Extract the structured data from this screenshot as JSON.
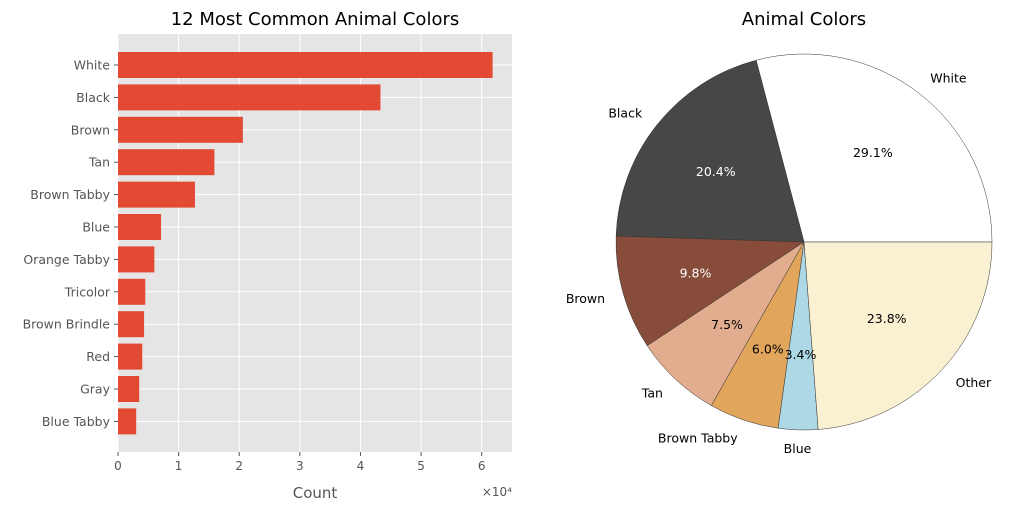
{
  "chart_data": [
    {
      "type": "bar",
      "orientation": "horizontal",
      "title": "12 Most  Common Animal Colors",
      "xlabel": "Count",
      "ylabel": "",
      "x_scale_label": "×10⁴",
      "xlim": [
        0,
        6.5
      ],
      "xticks": [
        "0",
        "1",
        "2",
        "3",
        "4",
        "5",
        "6"
      ],
      "grid": true,
      "categories": [
        "White",
        "Black",
        "Brown",
        "Tan",
        "Brown Tabby",
        "Blue",
        "Orange Tabby",
        "Tricolor",
        "Brown Brindle",
        "Red",
        "Gray",
        "Blue Tabby"
      ],
      "values": [
        61800,
        43300,
        20600,
        15900,
        12700,
        7100,
        6000,
        4500,
        4300,
        4000,
        3500,
        3000
      ],
      "bar_color": "#E24A33",
      "background_color": "#E5E5E5"
    },
    {
      "type": "pie",
      "title": "Animal Colors",
      "labels": [
        "White",
        "Black",
        "Brown",
        "Tan",
        "Brown Tabby",
        "Blue",
        "Other"
      ],
      "values": [
        29.1,
        20.4,
        9.8,
        7.5,
        6.0,
        3.4,
        23.8
      ],
      "pct_labels": [
        "29.1%",
        "20.4%",
        "9.8%",
        "7.5%",
        "6.0%",
        "3.4%",
        "23.8%"
      ],
      "colors": [
        "#FFFFFF",
        "#474747",
        "#874C3A",
        "#E2AD8E",
        "#E1A55C",
        "#ADD8E6",
        "#FAF1D2"
      ],
      "pct_text_colors": [
        "#000000",
        "#FFFFFF",
        "#FFFFFF",
        "#000000",
        "#000000",
        "#000000",
        "#000000"
      ],
      "start_angle_deg": 0
    }
  ]
}
